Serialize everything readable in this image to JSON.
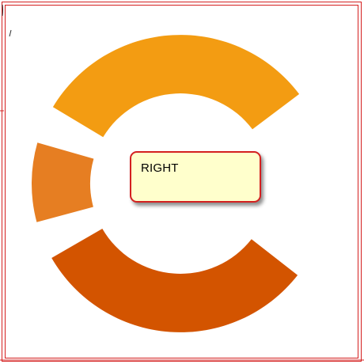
{
  "prompt": {
    "direction_label": "RIGHT"
  },
  "ring": {
    "segments": [
      {
        "name": "top",
        "color": "#f39c12"
      },
      {
        "name": "left",
        "color": "#e67e22"
      },
      {
        "name": "bottom",
        "color": "#d35400"
      }
    ]
  }
}
